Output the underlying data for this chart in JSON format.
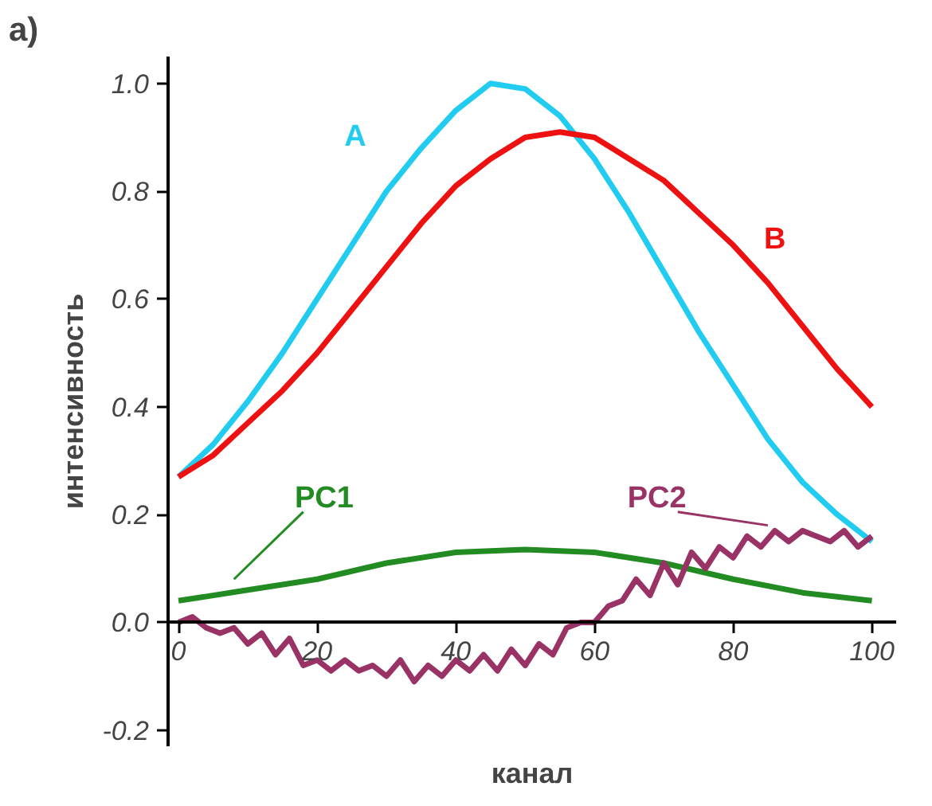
{
  "chart_data": {
    "type": "line",
    "xlabel": "канал",
    "ylabel": "интенсивность",
    "xlim": [
      -1.5,
      103.5
    ],
    "ylim": [
      -0.23,
      1.05
    ],
    "xticks": [
      0,
      20,
      40,
      60,
      80,
      100
    ],
    "yticks": [
      {
        "value": -0.2,
        "label": "-0.2"
      },
      {
        "value": 0,
        "label": "0.0"
      },
      {
        "value": 0.2,
        "label": "0.2"
      },
      {
        "value": 0.4,
        "label": "0.4"
      },
      {
        "value": 0.6,
        "label": "0.6"
      },
      {
        "value": 0.8,
        "label": "0.8"
      },
      {
        "value": 1.0,
        "label": "1.0"
      }
    ],
    "grid": false,
    "marker": "none",
    "line_style": "solid",
    "series": [
      {
        "name": "A",
        "color": "#22ccf0",
        "x": [
          0,
          5,
          10,
          15,
          20,
          25,
          30,
          35,
          40,
          45,
          50,
          55,
          60,
          65,
          70,
          75,
          80,
          85,
          90,
          95,
          100
        ],
        "values": [
          0.27,
          0.33,
          0.41,
          0.5,
          0.6,
          0.7,
          0.8,
          0.88,
          0.95,
          1.0,
          0.99,
          0.94,
          0.86,
          0.76,
          0.65,
          0.54,
          0.44,
          0.34,
          0.26,
          0.2,
          0.15
        ]
      },
      {
        "name": "B",
        "color": "#ee1111",
        "x": [
          0,
          5,
          10,
          15,
          20,
          25,
          30,
          35,
          40,
          45,
          50,
          55,
          60,
          65,
          70,
          75,
          80,
          85,
          90,
          95,
          100
        ],
        "values": [
          0.27,
          0.31,
          0.37,
          0.43,
          0.5,
          0.58,
          0.66,
          0.74,
          0.81,
          0.86,
          0.9,
          0.91,
          0.9,
          0.86,
          0.82,
          0.76,
          0.7,
          0.63,
          0.55,
          0.47,
          0.4
        ]
      },
      {
        "name": "PC1",
        "color": "#228b22",
        "x": [
          0,
          10,
          20,
          30,
          40,
          50,
          60,
          70,
          80,
          90,
          100
        ],
        "values": [
          0.04,
          0.06,
          0.08,
          0.11,
          0.13,
          0.135,
          0.13,
          0.11,
          0.08,
          0.055,
          0.04
        ]
      },
      {
        "name": "PC2",
        "color": "#993366",
        "x": [
          0,
          2,
          4,
          6,
          8,
          10,
          12,
          14,
          16,
          18,
          20,
          22,
          24,
          26,
          28,
          30,
          32,
          34,
          36,
          38,
          40,
          42,
          44,
          46,
          48,
          50,
          52,
          54,
          56,
          58,
          60,
          62,
          64,
          66,
          68,
          70,
          72,
          74,
          76,
          78,
          80,
          82,
          84,
          86,
          88,
          90,
          92,
          94,
          96,
          98,
          100
        ],
        "values": [
          0.0,
          0.01,
          -0.01,
          -0.02,
          -0.01,
          -0.04,
          -0.02,
          -0.06,
          -0.03,
          -0.08,
          -0.07,
          -0.09,
          -0.07,
          -0.09,
          -0.08,
          -0.1,
          -0.07,
          -0.11,
          -0.08,
          -0.1,
          -0.07,
          -0.09,
          -0.06,
          -0.09,
          -0.05,
          -0.08,
          -0.04,
          -0.06,
          -0.01,
          0.0,
          0.0,
          0.03,
          0.04,
          0.08,
          0.05,
          0.11,
          0.07,
          0.13,
          0.1,
          0.14,
          0.12,
          0.16,
          0.14,
          0.17,
          0.15,
          0.17,
          0.16,
          0.15,
          0.17,
          0.14,
          0.16
        ]
      }
    ],
    "annotations": [
      "a)"
    ]
  }
}
